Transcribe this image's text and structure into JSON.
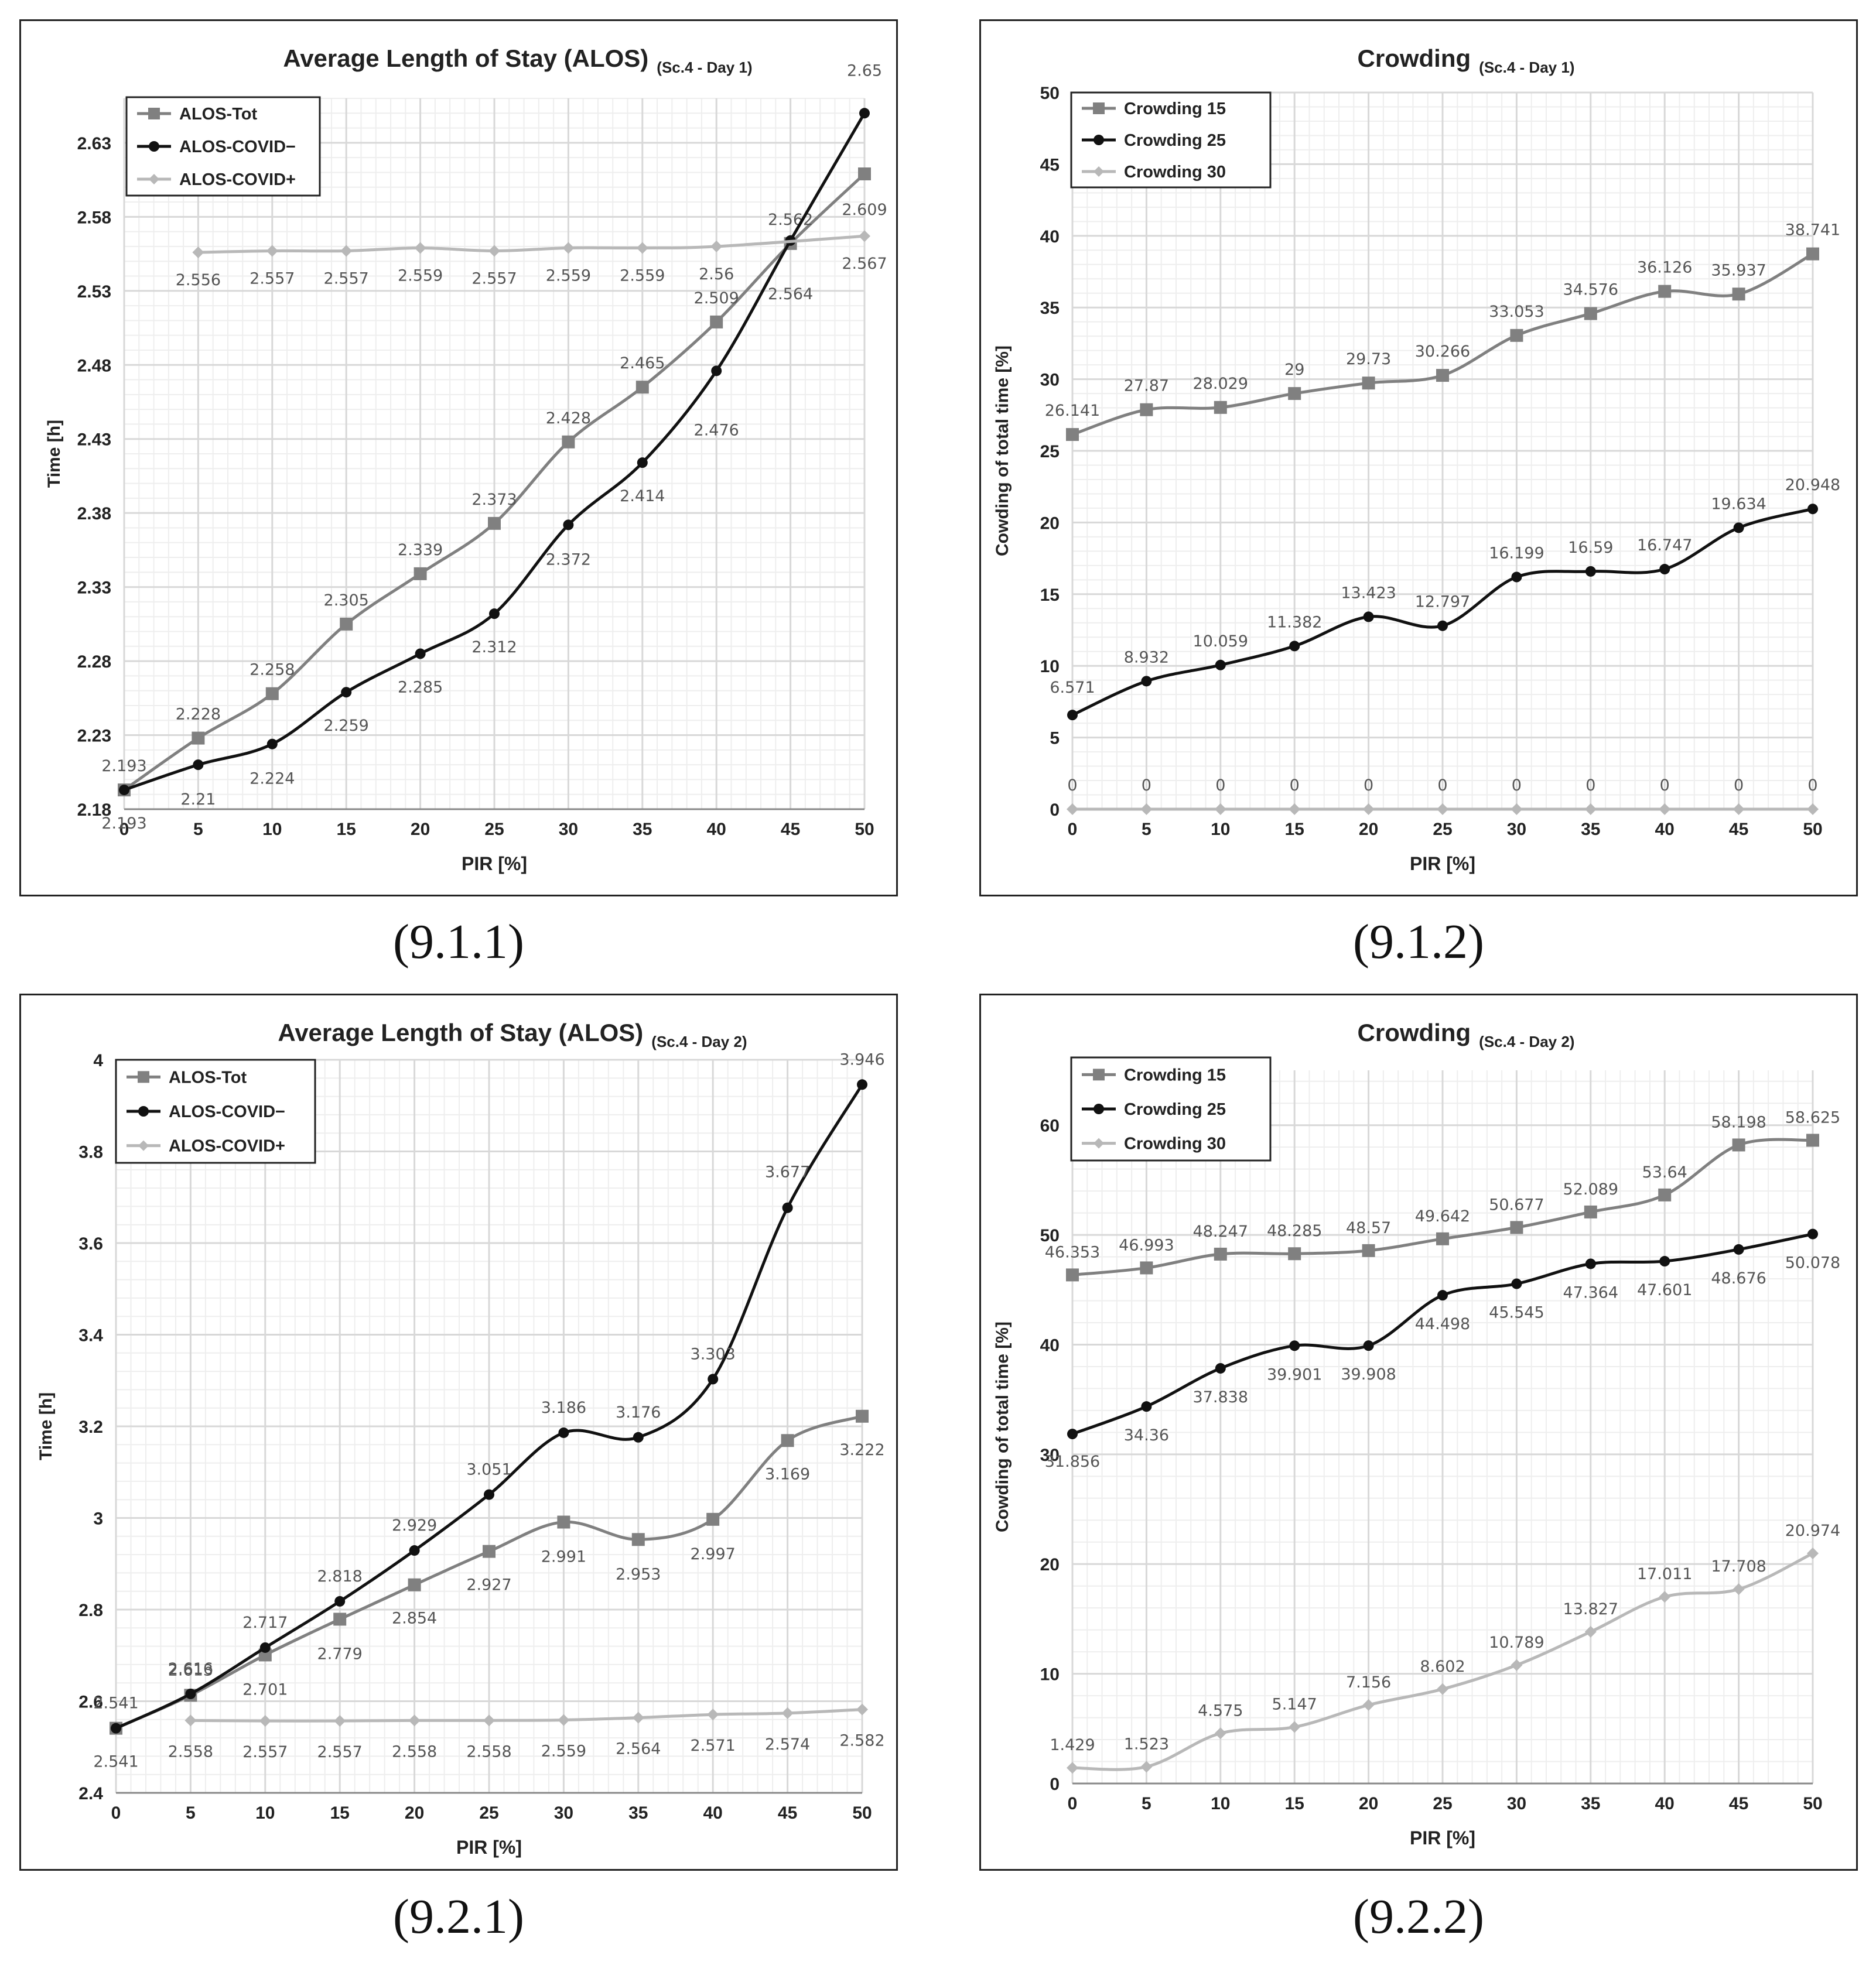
{
  "colors": {
    "tot": "#808080",
    "neg": "#111111",
    "pos": "#b8b8b8",
    "grid": "#d8d8d8",
    "axis": "#888888",
    "text": "#222222",
    "label": "#555555"
  },
  "captions": [
    "(9.1.1)",
    "(9.1.2)",
    "(9.2.1)",
    "(9.2.2)"
  ],
  "chart_data": [
    {
      "type": "line",
      "title": "Average Length of Stay (ALOS)",
      "subtitle": "(Sc.4 - Day 1)",
      "xlabel": "PIR [%]",
      "ylabel": "Time [h]",
      "x": [
        0,
        5,
        10,
        15,
        20,
        25,
        30,
        35,
        40,
        45,
        50
      ],
      "xticks": [
        "0",
        "5",
        "10",
        "15",
        "20",
        "25",
        "30",
        "35",
        "40",
        "45",
        "50"
      ],
      "yticks": [
        "2.18",
        "2.23",
        "2.28",
        "2.33",
        "2.38",
        "2.43",
        "2.48",
        "2.53",
        "2.58",
        "2.63"
      ],
      "ylim": [
        2.18,
        2.66
      ],
      "legend_position": "top-left",
      "series": [
        {
          "name": "ALOS-Tot",
          "marker": "square",
          "color_key": "tot",
          "values": [
            2.193,
            2.228,
            2.258,
            2.305,
            2.339,
            2.373,
            2.428,
            2.465,
            2.509,
            2.562,
            2.609
          ],
          "labels": [
            "2.193",
            "2.228",
            "2.258",
            "2.305",
            "2.339",
            "2.373",
            "2.428",
            "2.465",
            "2.509",
            "2.562",
            "2.609"
          ]
        },
        {
          "name": "ALOS-COVID−",
          "marker": "circle",
          "color_key": "neg",
          "values": [
            2.193,
            2.21,
            2.224,
            2.259,
            2.285,
            2.312,
            2.372,
            2.414,
            2.476,
            2.564,
            2.65
          ],
          "labels": [
            "2.193",
            "2.21",
            "2.224",
            "2.259",
            "2.285",
            "2.312",
            "2.372",
            "2.414",
            "2.476",
            "2.564",
            "2.65"
          ]
        },
        {
          "name": "ALOS-COVID+",
          "marker": "diamond",
          "color_key": "pos",
          "values": [
            null,
            2.556,
            2.557,
            2.557,
            2.559,
            2.557,
            2.559,
            2.559,
            2.56,
            null,
            2.567
          ],
          "labels": [
            "",
            "2.556",
            "2.557",
            "2.557",
            "2.559",
            "2.557",
            "2.559",
            "2.559",
            "2.56",
            "",
            "2.567"
          ]
        }
      ]
    },
    {
      "type": "line",
      "title": "Crowding",
      "subtitle": "(Sc.4 - Day 1)",
      "xlabel": "PIR [%]",
      "ylabel": "Cowding of total time [%]",
      "x": [
        0,
        5,
        10,
        15,
        20,
        25,
        30,
        35,
        40,
        45,
        50
      ],
      "xticks": [
        "0",
        "5",
        "10",
        "15",
        "20",
        "25",
        "30",
        "35",
        "40",
        "45",
        "50"
      ],
      "yticks": [
        "0",
        "5",
        "10",
        "15",
        "20",
        "25",
        "30",
        "35",
        "40",
        "45",
        "50"
      ],
      "ylim": [
        0,
        50
      ],
      "legend_position": "top-left",
      "series": [
        {
          "name": "Crowding 15",
          "marker": "square",
          "color_key": "tot",
          "values": [
            26.141,
            27.87,
            28.029,
            29,
            29.73,
            30.266,
            33.053,
            34.576,
            36.126,
            35.937,
            38.741
          ],
          "labels": [
            "26.141",
            "27.87",
            "28.029",
            "29",
            "29.73",
            "30.266",
            "33.053",
            "34.576",
            "36.126",
            "35.937",
            "38.741"
          ]
        },
        {
          "name": "Crowding 25",
          "marker": "circle",
          "color_key": "neg",
          "values": [
            6.571,
            8.932,
            10.059,
            11.382,
            13.423,
            12.797,
            16.199,
            16.59,
            16.747,
            19.634,
            20.948
          ],
          "labels": [
            "6.571",
            "8.932",
            "10.059",
            "11.382",
            "13.423",
            "12.797",
            "16.199",
            "16.59",
            "16.747",
            "19.634",
            "20.948"
          ]
        },
        {
          "name": "Crowding 30",
          "marker": "diamond",
          "color_key": "pos",
          "values": [
            0,
            0,
            0,
            0,
            0,
            0,
            0,
            0,
            0,
            0,
            0
          ],
          "labels": [
            "0",
            "0",
            "0",
            "0",
            "0",
            "0",
            "0",
            "0",
            "0",
            "0",
            "0"
          ]
        }
      ]
    },
    {
      "type": "line",
      "title": "Average Length of Stay (ALOS)",
      "subtitle": "(Sc.4 - Day 2)",
      "xlabel": "PIR [%]",
      "ylabel": "Time [h]",
      "x": [
        0,
        5,
        10,
        15,
        20,
        25,
        30,
        35,
        40,
        45,
        50
      ],
      "xticks": [
        "0",
        "5",
        "10",
        "15",
        "20",
        "25",
        "30",
        "35",
        "40",
        "45",
        "50"
      ],
      "yticks": [
        "2.4",
        "2.6",
        "2.8",
        "3",
        "3.2",
        "3.4",
        "3.6",
        "3.8",
        "4"
      ],
      "ylim": [
        2.4,
        4.0
      ],
      "legend_position": "top-left",
      "series": [
        {
          "name": "ALOS-Tot",
          "marker": "square",
          "color_key": "tot",
          "values": [
            2.541,
            2.613,
            2.701,
            2.779,
            2.854,
            2.927,
            2.991,
            2.953,
            2.997,
            3.169,
            3.222
          ],
          "labels": [
            "2.541",
            "2.613",
            "2.701",
            "2.779",
            "2.854",
            "2.927",
            "2.991",
            "2.953",
            "2.997",
            "3.169",
            "3.222"
          ]
        },
        {
          "name": "ALOS-COVID−",
          "marker": "circle",
          "color_key": "neg",
          "values": [
            2.541,
            2.616,
            2.717,
            2.818,
            2.929,
            3.051,
            3.186,
            3.176,
            3.303,
            3.677,
            3.946
          ],
          "labels": [
            "2.541",
            "2.616",
            "2.717",
            "2.818",
            "2.929",
            "3.051",
            "3.186",
            "3.176",
            "3.303",
            "3.677",
            "3.946"
          ]
        },
        {
          "name": "ALOS-COVID+",
          "marker": "diamond",
          "color_key": "pos",
          "values": [
            null,
            2.558,
            2.557,
            2.557,
            2.558,
            2.558,
            2.559,
            2.564,
            2.571,
            2.574,
            2.582
          ],
          "labels": [
            "",
            "2.558",
            "2.557",
            "2.557",
            "2.558",
            "2.558",
            "2.559",
            "2.564",
            "2.571",
            "2.574",
            "2.582"
          ]
        }
      ]
    },
    {
      "type": "line",
      "title": "Crowding",
      "subtitle": "(Sc.4 - Day 2)",
      "xlabel": "PIR [%]",
      "ylabel": "Cowding of total time [%]",
      "x": [
        0,
        5,
        10,
        15,
        20,
        25,
        30,
        35,
        40,
        45,
        50
      ],
      "xticks": [
        "0",
        "5",
        "10",
        "15",
        "20",
        "25",
        "30",
        "35",
        "40",
        "45",
        "50"
      ],
      "yticks": [
        "0",
        "10",
        "20",
        "30",
        "40",
        "50",
        "60"
      ],
      "ylim": [
        0,
        65
      ],
      "legend_position": "top-left",
      "series": [
        {
          "name": "Crowding 15",
          "marker": "square",
          "color_key": "tot",
          "values": [
            46.353,
            46.993,
            48.247,
            48.285,
            48.57,
            49.642,
            50.677,
            52.089,
            53.64,
            58.198,
            58.625
          ],
          "labels": [
            "46.353",
            "46.993",
            "48.247",
            "48.285",
            "48.57",
            "49.642",
            "50.677",
            "52.089",
            "53.64",
            "58.198",
            "58.625"
          ]
        },
        {
          "name": "Crowding 25",
          "marker": "circle",
          "color_key": "neg",
          "values": [
            31.856,
            34.36,
            37.838,
            39.901,
            39.908,
            44.498,
            45.545,
            47.364,
            47.601,
            48.676,
            50.078
          ],
          "labels": [
            "31.856",
            "34.36",
            "37.838",
            "39.901",
            "39.908",
            "44.498",
            "45.545",
            "47.364",
            "47.601",
            "48.676",
            "50.078"
          ]
        },
        {
          "name": "Crowding 30",
          "marker": "diamond",
          "color_key": "pos",
          "values": [
            1.429,
            1.523,
            4.575,
            5.147,
            7.156,
            8.602,
            10.789,
            13.827,
            17.011,
            17.708,
            20.974
          ],
          "labels": [
            "1.429",
            "1.523",
            "4.575",
            "5.147",
            "7.156",
            "8.602",
            "10.789",
            "13.827",
            "17.011",
            "17.708",
            "20.974"
          ]
        }
      ]
    }
  ]
}
